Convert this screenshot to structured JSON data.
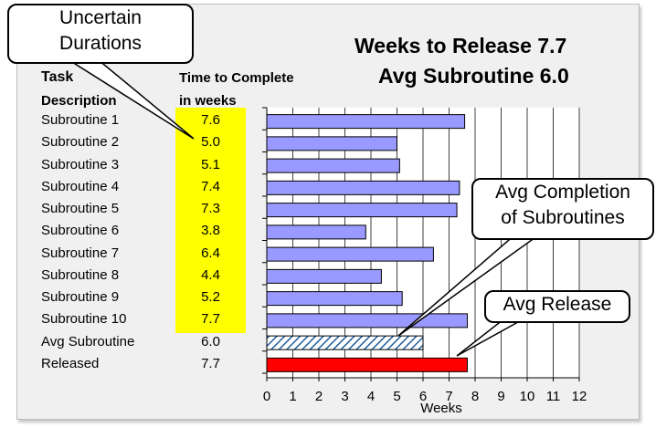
{
  "chart_data": {
    "type": "bar",
    "orientation": "horizontal",
    "title_lines": [
      "Weeks to Release 7.7",
      "Avg Subroutine 6.0"
    ],
    "header": {
      "task_line1": "Task",
      "task_line2": "Description",
      "time_line1": "Time to Complete",
      "time_line2": "in weeks"
    },
    "categories": [
      "Subroutine 1",
      "Subroutine 2",
      "Subroutine 3",
      "Subroutine 4",
      "Subroutine 5",
      "Subroutine 6",
      "Subroutine 7",
      "Subroutine 8",
      "Subroutine 9",
      "Subroutine 10",
      "Avg Subroutine",
      "Released"
    ],
    "value_labels": [
      "7.6",
      "5.0",
      "5.1",
      "7.4",
      "7.3",
      "3.8",
      "6.4",
      "4.4",
      "5.2",
      "7.7",
      "6.0",
      "7.7"
    ],
    "values": [
      7.6,
      5.0,
      5.1,
      7.4,
      7.3,
      3.8,
      6.4,
      4.4,
      5.2,
      7.7,
      6.0,
      7.7
    ],
    "bar_styles": [
      "normal",
      "normal",
      "normal",
      "normal",
      "normal",
      "normal",
      "normal",
      "normal",
      "normal",
      "normal",
      "hatched",
      "release"
    ],
    "xlabel": "Weeks",
    "xlim": [
      0,
      12
    ],
    "xticks": [
      "0",
      "1",
      "2",
      "3",
      "4",
      "5",
      "6",
      "7",
      "8",
      "9",
      "10",
      "11",
      "12"
    ],
    "grid": true,
    "colors": {
      "bar": "#9999ff",
      "hatch": "#1f5fa0",
      "release": "#ff0000",
      "highlight": "#ffff00"
    },
    "annotations": [
      {
        "id": "uncertain",
        "lines": [
          "Uncertain",
          "Durations"
        ]
      },
      {
        "id": "avg-completion",
        "lines": [
          "Avg Completion",
          "of Subroutines"
        ]
      },
      {
        "id": "avg-release",
        "lines": [
          "Avg Release"
        ]
      }
    ]
  }
}
